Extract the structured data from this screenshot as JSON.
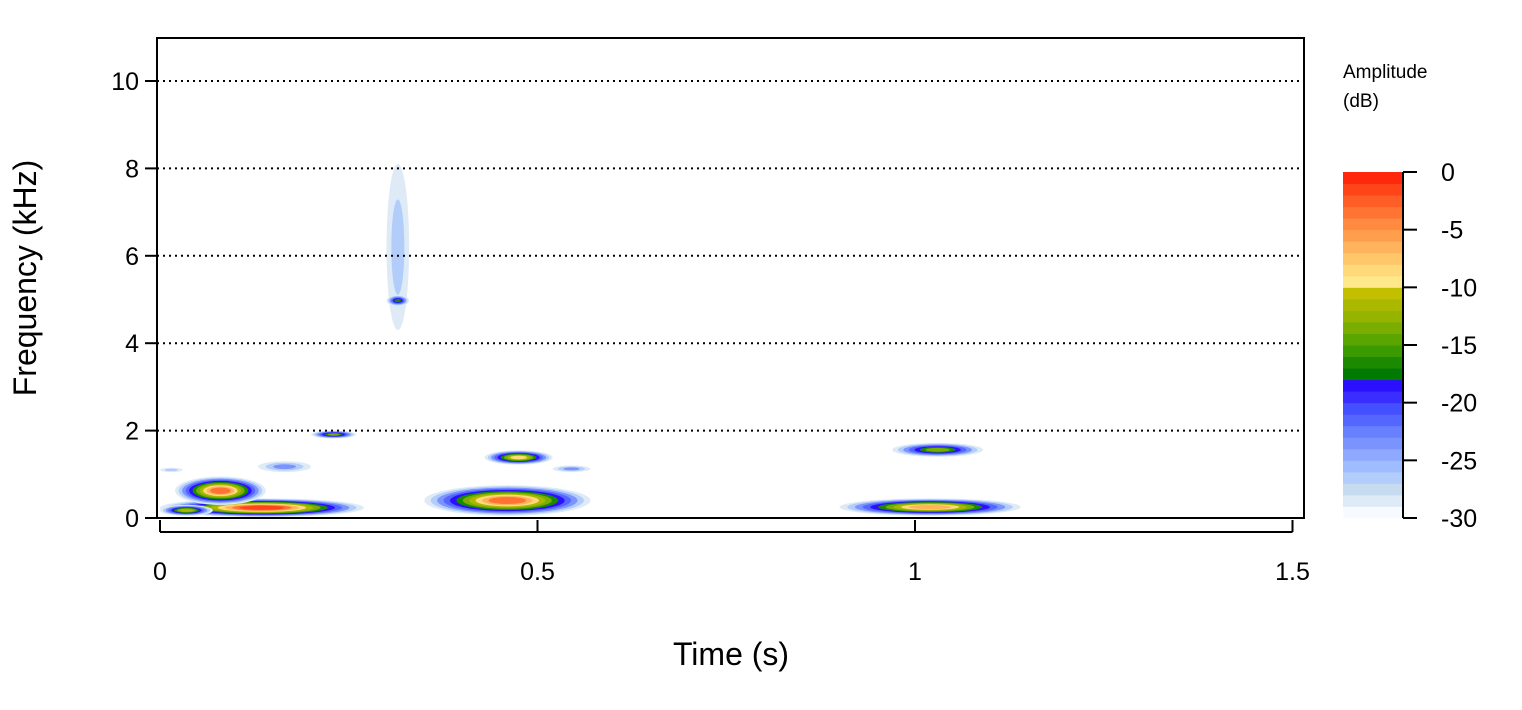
{
  "chart_data": {
    "type": "heatmap",
    "subtype": "spectrogram",
    "title": "",
    "xlabel": "Time (s)",
    "ylabel": "Frequency (kHz)",
    "xlim": [
      0,
      1.52
    ],
    "ylim": [
      0,
      11
    ],
    "x_ticks": [
      {
        "value": 0,
        "label": "0"
      },
      {
        "value": 0.5,
        "label": "0.5"
      },
      {
        "value": 1,
        "label": "1"
      },
      {
        "value": 1.5,
        "label": "1.5"
      }
    ],
    "y_ticks": [
      {
        "value": 0,
        "label": "0"
      },
      {
        "value": 2,
        "label": "2"
      },
      {
        "value": 4,
        "label": "4"
      },
      {
        "value": 6,
        "label": "6"
      },
      {
        "value": 8,
        "label": "8"
      },
      {
        "value": 10,
        "label": "10"
      }
    ],
    "grid": {
      "horizontal_dotted": [
        2,
        4,
        6,
        8,
        10
      ]
    },
    "colorbar": {
      "title_line1": "Amplitude",
      "title_line2": "(dB)",
      "range": [
        -30,
        0
      ],
      "placement": "right",
      "ticks": [
        {
          "value": 0,
          "label": "0"
        },
        {
          "value": -5,
          "label": "-5"
        },
        {
          "value": -10,
          "label": "-10"
        },
        {
          "value": -15,
          "label": "-15"
        },
        {
          "value": -20,
          "label": "-20"
        },
        {
          "value": -25,
          "label": "-25"
        },
        {
          "value": -30,
          "label": "-30"
        }
      ],
      "colors": [
        "#f7fbff",
        "#deebf7",
        "#c6dbef",
        "#b3cdfb",
        "#9ebcff",
        "#8ea9ff",
        "#7a93ff",
        "#6880ff",
        "#5566ff",
        "#4450ff",
        "#3a2dff",
        "#2a10ff",
        "#007a00",
        "#1b8a00",
        "#3a9a00",
        "#5aa500",
        "#7aad00",
        "#94b400",
        "#aab800",
        "#c2bf00",
        "#ffe88a",
        "#ffd97a",
        "#ffc66a",
        "#ffb35c",
        "#ff9f4e",
        "#ff8a40",
        "#ff7433",
        "#ff5d26",
        "#ff4419",
        "#ff280c"
      ]
    },
    "blobs": [
      {
        "t0": 0.0,
        "t1": 0.27,
        "f0": 0.02,
        "f1": 0.45,
        "peak": -1
      },
      {
        "t0": 0.02,
        "t1": 0.14,
        "f0": 0.3,
        "f1": 0.95,
        "peak": -4
      },
      {
        "t0": 0.0,
        "t1": 0.07,
        "f0": 0.05,
        "f1": 0.3,
        "peak": -10
      },
      {
        "t0": 0.2,
        "t1": 0.26,
        "f0": 1.82,
        "f1": 2.0,
        "peak": -14
      },
      {
        "t0": 0.3,
        "t1": 0.33,
        "f0": 4.3,
        "f1": 8.1,
        "peak": -26
      },
      {
        "t0": 0.3,
        "t1": 0.33,
        "f0": 4.85,
        "f1": 5.1,
        "peak": -16
      },
      {
        "t0": 0.35,
        "t1": 0.57,
        "f0": 0.05,
        "f1": 0.75,
        "peak": -3
      },
      {
        "t0": 0.43,
        "t1": 0.52,
        "f0": 1.22,
        "f1": 1.55,
        "peak": -8
      },
      {
        "t0": 0.9,
        "t1": 1.14,
        "f0": 0.05,
        "f1": 0.45,
        "peak": -6
      },
      {
        "t0": 0.97,
        "t1": 1.09,
        "f0": 1.4,
        "f1": 1.72,
        "peak": -12
      },
      {
        "t0": 0.13,
        "t1": 0.2,
        "f0": 1.05,
        "f1": 1.3,
        "peak": -22
      },
      {
        "t0": 0.0,
        "t1": 0.03,
        "f0": 1.05,
        "f1": 1.15,
        "peak": -26
      },
      {
        "t0": 0.52,
        "t1": 0.57,
        "f0": 1.05,
        "f1": 1.2,
        "peak": -24
      }
    ]
  }
}
